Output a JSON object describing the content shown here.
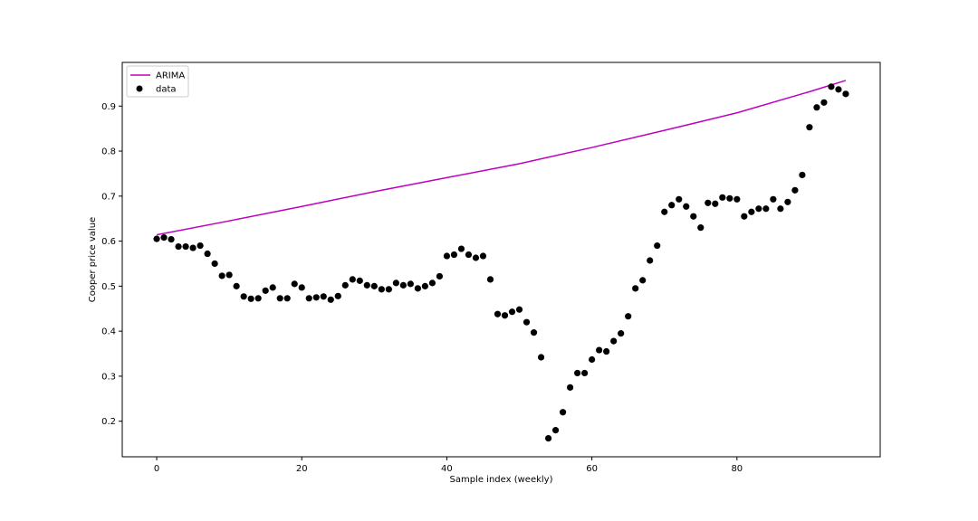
{
  "chart_data": {
    "type": "scatter",
    "title": "",
    "xlabel": "Sample index (weekly)",
    "ylabel": "Cooper price value",
    "xlim": [
      -4.75,
      99.75
    ],
    "ylim": [
      0.121,
      0.997
    ],
    "xticks": [
      0,
      20,
      40,
      60,
      80
    ],
    "yticks": [
      0.2,
      0.3,
      0.4,
      0.5,
      0.6,
      0.7,
      0.8,
      0.9
    ],
    "grid": false,
    "legend_position": "top-left",
    "series": [
      {
        "name": "ARIMA",
        "kind": "line",
        "color": "#bf00bf",
        "x": [
          0,
          10,
          20,
          30,
          40,
          50,
          60,
          70,
          80,
          90,
          95
        ],
        "y": [
          0.614,
          0.645,
          0.677,
          0.71,
          0.741,
          0.772,
          0.808,
          0.846,
          0.885,
          0.932,
          0.957
        ]
      },
      {
        "name": "data",
        "kind": "scatter",
        "color": "#000000",
        "x": [
          0,
          1,
          2,
          3,
          4,
          5,
          6,
          7,
          8,
          9,
          10,
          11,
          12,
          13,
          14,
          15,
          16,
          17,
          18,
          19,
          20,
          21,
          22,
          23,
          24,
          25,
          26,
          27,
          28,
          29,
          30,
          31,
          32,
          33,
          34,
          35,
          36,
          37,
          38,
          39,
          40,
          41,
          42,
          43,
          44,
          45,
          46,
          47,
          48,
          49,
          50,
          51,
          52,
          53,
          54,
          55,
          56,
          57,
          58,
          59,
          60,
          61,
          62,
          63,
          64,
          65,
          66,
          67,
          68,
          69,
          70,
          71,
          72,
          73,
          74,
          75,
          76,
          77,
          78,
          79,
          80,
          81,
          82,
          83,
          84,
          85,
          86,
          87,
          88,
          89,
          90,
          91,
          92,
          93,
          94,
          95
        ],
        "y": [
          0.605,
          0.608,
          0.604,
          0.588,
          0.588,
          0.585,
          0.59,
          0.572,
          0.55,
          0.523,
          0.525,
          0.5,
          0.477,
          0.472,
          0.473,
          0.49,
          0.497,
          0.473,
          0.473,
          0.505,
          0.497,
          0.473,
          0.475,
          0.477,
          0.47,
          0.478,
          0.502,
          0.515,
          0.512,
          0.502,
          0.5,
          0.493,
          0.493,
          0.507,
          0.502,
          0.505,
          0.495,
          0.5,
          0.507,
          0.522,
          0.567,
          0.57,
          0.583,
          0.57,
          0.563,
          0.567,
          0.515,
          0.438,
          0.435,
          0.443,
          0.448,
          0.42,
          0.397,
          0.342,
          0.162,
          0.18,
          0.22,
          0.275,
          0.307,
          0.307,
          0.337,
          0.358,
          0.355,
          0.378,
          0.395,
          0.433,
          0.495,
          0.513,
          0.557,
          0.59,
          0.665,
          0.68,
          0.693,
          0.677,
          0.655,
          0.63,
          0.685,
          0.683,
          0.697,
          0.695,
          0.693,
          0.655,
          0.665,
          0.672,
          0.672,
          0.693,
          0.672,
          0.687,
          0.713,
          0.747,
          0.853,
          0.897,
          0.908,
          0.943,
          0.937,
          0.927
        ]
      }
    ]
  }
}
